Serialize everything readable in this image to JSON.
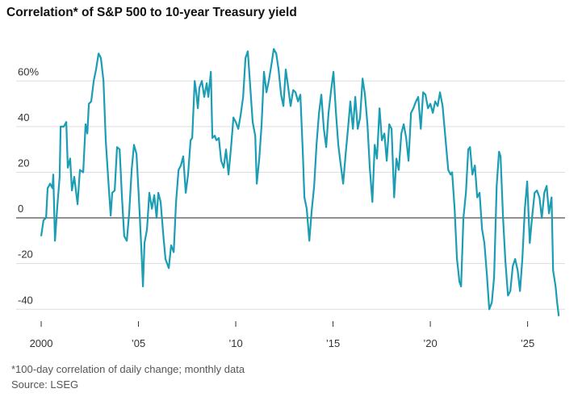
{
  "chart_data": {
    "type": "line",
    "title": "Correlation* of S&P 500 to 10-year Treasury yield",
    "footnote": "*100-day correlation of daily change; monthly data",
    "source": "Source: LSEG",
    "xlim": [
      1999.75,
      2026.9
    ],
    "xticks": [
      {
        "value": 2000,
        "label": "2000"
      },
      {
        "value": 2005,
        "label": "’05"
      },
      {
        "value": 2010,
        "label": "’10"
      },
      {
        "value": 2015,
        "label": "’15"
      },
      {
        "value": 2020,
        "label": "’20"
      },
      {
        "value": 2025,
        "label": "’25"
      }
    ],
    "ylim": [
      -45,
      76
    ],
    "yticks": [
      -40,
      -20,
      0,
      20,
      40,
      {
        "value": 60,
        "label": "60%"
      }
    ],
    "grid": true,
    "x": [
      2000.0,
      2000.12,
      2000.25,
      2000.33,
      2000.46,
      2000.58,
      2000.62,
      2000.71,
      2000.83,
      2000.95,
      2001.0,
      2001.16,
      2001.29,
      2001.37,
      2001.49,
      2001.58,
      2001.7,
      2001.87,
      2001.99,
      2002.16,
      2002.28,
      2002.37,
      2002.45,
      2002.57,
      2002.7,
      2002.82,
      2002.95,
      2003.07,
      2003.2,
      2003.32,
      2003.44,
      2003.57,
      2003.65,
      2003.78,
      2003.9,
      2004.03,
      2004.15,
      2004.27,
      2004.4,
      2004.52,
      2004.65,
      2004.77,
      2004.9,
      2005.02,
      2005.15,
      2005.23,
      2005.31,
      2005.44,
      2005.56,
      2005.69,
      2005.81,
      2005.93,
      2006.02,
      2006.14,
      2006.27,
      2006.39,
      2006.56,
      2006.68,
      2006.81,
      2006.93,
      2007.06,
      2007.18,
      2007.3,
      2007.43,
      2007.55,
      2007.68,
      2007.76,
      2007.89,
      2007.97,
      2008.05,
      2008.13,
      2008.26,
      2008.38,
      2008.51,
      2008.59,
      2008.72,
      2008.8,
      2008.92,
      2009.01,
      2009.13,
      2009.25,
      2009.38,
      2009.5,
      2009.63,
      2009.75,
      2009.88,
      2010.0,
      2010.13,
      2010.25,
      2010.38,
      2010.5,
      2010.62,
      2010.75,
      2010.87,
      2011.0,
      2011.08,
      2011.21,
      2011.33,
      2011.45,
      2011.58,
      2011.7,
      2011.83,
      2011.95,
      2012.08,
      2012.2,
      2012.33,
      2012.45,
      2012.57,
      2012.7,
      2012.82,
      2012.95,
      2013.07,
      2013.2,
      2013.32,
      2013.45,
      2013.53,
      2013.65,
      2013.78,
      2013.9,
      2014.03,
      2014.15,
      2014.28,
      2014.4,
      2014.53,
      2014.65,
      2014.77,
      2014.9,
      2015.02,
      2015.15,
      2015.27,
      2015.4,
      2015.52,
      2015.65,
      2015.77,
      2015.89,
      2016.02,
      2016.14,
      2016.27,
      2016.39,
      2016.52,
      2016.64,
      2016.77,
      2016.89,
      2017.02,
      2017.14,
      2017.26,
      2017.39,
      2017.51,
      2017.64,
      2017.76,
      2017.89,
      2018.01,
      2018.14,
      2018.26,
      2018.38,
      2018.51,
      2018.63,
      2018.76,
      2018.88,
      2019.01,
      2019.13,
      2019.26,
      2019.38,
      2019.51,
      2019.63,
      2019.75,
      2019.88,
      2020.0,
      2020.13,
      2020.25,
      2020.38,
      2020.5,
      2020.63,
      2020.92,
      2021.04,
      2021.12,
      2021.25,
      2021.37,
      2021.5,
      2021.58,
      2021.7,
      2021.83,
      2021.95,
      2022.04,
      2022.16,
      2022.29,
      2022.41,
      2022.53,
      2022.66,
      2022.78,
      2022.91,
      2023.03,
      2023.16,
      2023.28,
      2023.41,
      2023.53,
      2023.61,
      2023.74,
      2023.86,
      2023.99,
      2024.11,
      2024.24,
      2024.36,
      2024.49,
      2024.61,
      2024.73,
      2024.86,
      2024.98,
      2025.11,
      2025.23,
      2025.36,
      2025.48,
      2025.61,
      2025.73,
      2025.86,
      2025.98,
      2026.1,
      2026.23,
      2026.31,
      2026.44,
      2026.52,
      2026.6
    ],
    "series": [
      {
        "color": "#1b9db3",
        "values": [
          -8,
          -1,
          0,
          13,
          15,
          13,
          19,
          -10,
          5,
          18,
          40,
          40,
          42,
          22,
          26,
          12,
          18,
          6,
          21,
          20,
          41,
          37,
          50,
          51,
          60,
          65,
          72,
          70,
          60,
          34,
          18,
          1,
          11,
          12,
          31,
          30,
          9,
          -8,
          -10,
          2,
          21,
          32,
          28,
          9,
          -14,
          -30,
          -11,
          -5,
          11,
          4,
          10,
          0,
          11,
          7,
          -7,
          -18,
          -22,
          -12,
          -15,
          7,
          21,
          23,
          27,
          11,
          19,
          34,
          35,
          60,
          55,
          48,
          57,
          60,
          53,
          59,
          53,
          64,
          35,
          36,
          34,
          35,
          25,
          22,
          30,
          19,
          30,
          44,
          42,
          39,
          45,
          53,
          70,
          73,
          57,
          42,
          36,
          15,
          26,
          41,
          64,
          55,
          60,
          67,
          74,
          72,
          65,
          54,
          49,
          65,
          57,
          49,
          56,
          55,
          51,
          54,
          28,
          9,
          4,
          -10,
          3,
          14,
          32,
          46,
          54,
          39,
          31,
          46,
          56,
          64,
          46,
          32,
          23,
          15,
          28,
          39,
          51,
          39,
          53,
          39,
          44,
          61,
          54,
          41,
          22,
          7,
          32,
          26,
          48,
          34,
          37,
          25,
          41,
          39,
          9,
          26,
          21,
          37,
          41,
          35,
          25,
          46,
          48,
          51,
          53,
          39,
          55,
          54,
          48,
          50,
          46,
          51,
          49,
          55,
          49,
          21,
          19,
          20,
          4,
          -18,
          -28,
          -30,
          0,
          11,
          30,
          31,
          19,
          23,
          9,
          11,
          -5,
          -11,
          -25,
          -40,
          -37,
          -26,
          14,
          29,
          27,
          0,
          -19,
          -34,
          -32,
          -21,
          -18,
          -23,
          -32,
          -18,
          4,
          16,
          -11,
          0,
          11,
          12,
          9,
          0,
          11,
          14,
          2,
          9,
          -23,
          -30,
          -37,
          -43
        ]
      }
    ]
  }
}
